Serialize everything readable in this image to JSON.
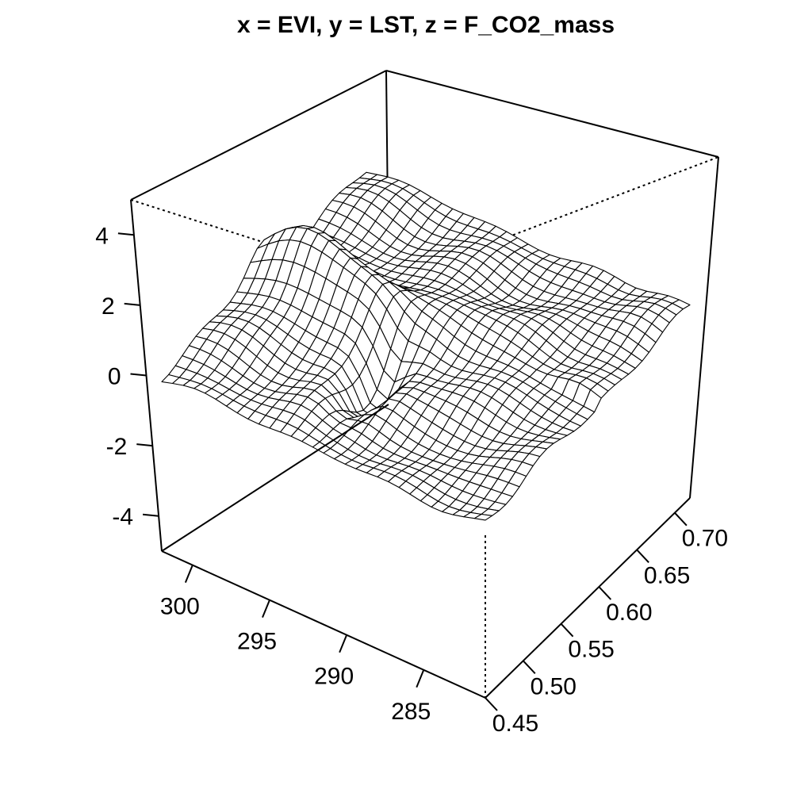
{
  "chart_data": {
    "type": "surface",
    "title": "x = EVI, y = LST, z = F_CO2_mass",
    "x_axis": {
      "variable": "EVI",
      "range": [
        0.45,
        0.72
      ],
      "ticks": [
        0.45,
        0.5,
        0.55,
        0.6,
        0.65,
        0.7
      ],
      "tick_labels": [
        "0.45",
        "0.50",
        "0.55",
        "0.60",
        "0.65",
        "0.70"
      ]
    },
    "y_axis": {
      "variable": "LST",
      "range": [
        281,
        302
      ],
      "ticks": [
        300,
        295,
        290,
        285
      ],
      "tick_labels": [
        "300",
        "295",
        "290",
        "285"
      ]
    },
    "z_axis": {
      "variable": "F_CO2_mass",
      "range": [
        -5,
        5
      ],
      "ticks": [
        4,
        2,
        0,
        -2,
        -4
      ],
      "tick_labels": [
        "4",
        "2",
        "0",
        "-2",
        "-4"
      ]
    },
    "grid": {
      "nx": 30,
      "ny": 30
    },
    "surface_shape": "Surface mostly near z = 0 (about -1.5 to 1), with a ridge along EVI 0.55-0.62 rising to about 2 at LST 295-301 and a trough near LST 292-293 and EVI 0.50-0.57",
    "style": {
      "surface_fill": "#ffffff",
      "mesh_color": "#000000",
      "box": true
    }
  }
}
